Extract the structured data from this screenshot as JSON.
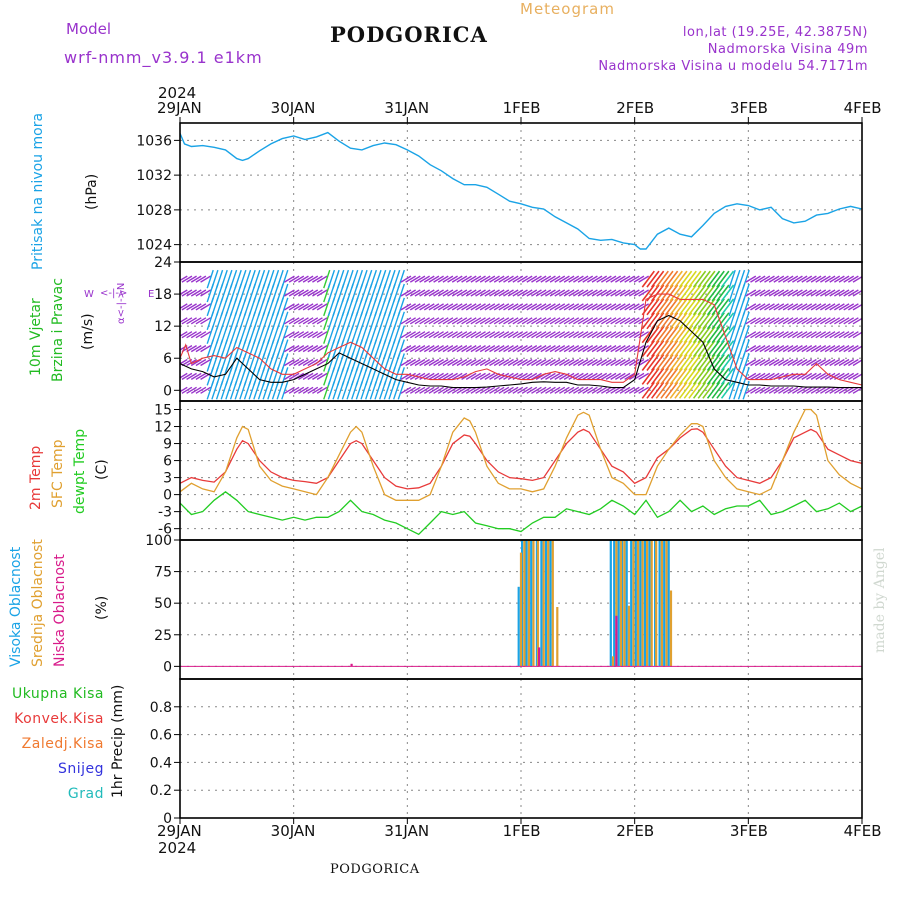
{
  "header": {
    "model_label": "Model",
    "model_name": "wrf-nmm_v3.9.1  e1km",
    "title": "PODGORICA",
    "meteogram": "Meteogram",
    "coords": "lon,lat (19.25E, 42.3875N)",
    "elevation": "Nadmorska Visina 49m",
    "model_elevation": "Nadmorska Visina u modelu 54.7171m"
  },
  "footer": {
    "station": "PODGORICA"
  },
  "watermark": "made by Angel",
  "time_axis": {
    "year_top": "2024",
    "year_bottom": "2024",
    "ticks": [
      "29JAN",
      "30JAN",
      "31JAN",
      "1FEB",
      "2FEB",
      "3FEB",
      "4FEB"
    ]
  },
  "panel_labels": {
    "pressure": {
      "name": "Pritisak na nivou mora",
      "unit": "(hPa)"
    },
    "wind": {
      "name1": "10m Vjetar",
      "name2": "Brzina i Pravac",
      "unit": "(m/s)",
      "compass_ns": "α<-|->N",
      "compass_w": "W",
      "compass_e": "E"
    },
    "temp": {
      "name1": "2m Temp",
      "name2": "SFC Temp",
      "name3": "dewpt Temp",
      "unit": "(C)"
    },
    "cloud": {
      "name1": "Visoka Oblacnost",
      "name2": "Srednja Oblacnost",
      "name3": "Niska Oblacnost",
      "unit": "(%)"
    },
    "precip": {
      "items": [
        "Ukupna Kisa",
        "Konvek.Kisa",
        "Zaledj.Kisa",
        "Snijeg",
        "Grad"
      ],
      "unit": "1hr Precip (mm)"
    }
  },
  "colors": {
    "pressure": "#1aa3e6",
    "wind_label": "#22bb22",
    "temp_2m": "#e83a3a",
    "temp_sfc": "#e0a030",
    "dewpt": "#22cc22",
    "cloud_high": "#1aa3e6",
    "cloud_mid": "#e0a030",
    "cloud_low": "#d81a8a",
    "purple": "#9933cc",
    "precip_total": "#22bb22",
    "precip_conv": "#e83a3a",
    "precip_frz": "#f07a30",
    "precip_snow": "#3333dd",
    "precip_hail": "#22bbbb"
  },
  "chart_data": [
    {
      "type": "line",
      "title": "Pritisak na nivou mora",
      "ylabel": "(hPa)",
      "ylim": [
        1022,
        1038
      ],
      "yticks": [
        1024,
        1028,
        1032,
        1036
      ],
      "x_unit": "days since 29JAN 00h",
      "x": [
        0,
        0.04,
        0.1,
        0.2,
        0.3,
        0.4,
        0.5,
        0.55,
        0.6,
        0.7,
        0.8,
        0.9,
        1.0,
        1.1,
        1.2,
        1.3,
        1.4,
        1.5,
        1.6,
        1.7,
        1.8,
        1.9,
        2.0,
        2.1,
        2.2,
        2.3,
        2.4,
        2.5,
        2.6,
        2.7,
        2.8,
        2.9,
        3.0,
        3.1,
        3.2,
        3.3,
        3.4,
        3.5,
        3.6,
        3.7,
        3.8,
        3.9,
        4.0,
        4.05,
        4.1,
        4.2,
        4.3,
        4.4,
        4.5,
        4.6,
        4.7,
        4.8,
        4.9,
        5.0,
        5.1,
        5.2,
        5.3,
        5.4,
        5.5,
        5.6,
        5.7,
        5.8,
        5.9,
        6.0
      ],
      "values": [
        1036.8,
        1035.6,
        1035.3,
        1035.4,
        1035.2,
        1034.9,
        1033.9,
        1033.7,
        1033.9,
        1034.8,
        1035.6,
        1036.2,
        1036.5,
        1036.1,
        1036.4,
        1036.9,
        1035.9,
        1035.1,
        1034.9,
        1035.4,
        1035.7,
        1035.5,
        1034.9,
        1034.2,
        1033.2,
        1032.5,
        1031.6,
        1030.9,
        1030.9,
        1030.6,
        1029.8,
        1029.0,
        1028.7,
        1028.3,
        1028.1,
        1027.2,
        1026.5,
        1025.8,
        1024.7,
        1024.5,
        1024.6,
        1024.2,
        1024.0,
        1023.5,
        1023.5,
        1025.2,
        1025.9,
        1025.2,
        1024.9,
        1026.2,
        1027.6,
        1028.4,
        1028.7,
        1028.5,
        1028.0,
        1028.3,
        1027.0,
        1026.5,
        1026.7,
        1027.4,
        1027.6,
        1028.1,
        1028.4,
        1028.1
      ]
    },
    {
      "type": "line",
      "title": "10m Vjetar Brzina i Pravac",
      "ylabel": "(m/s)",
      "ylim": [
        -2,
        24
      ],
      "yticks": [
        0,
        6,
        12,
        18,
        24
      ],
      "x_unit": "days since 29JAN 00h",
      "series": [
        {
          "name": "black",
          "x": [
            0,
            0.1,
            0.2,
            0.3,
            0.4,
            0.5,
            0.6,
            0.7,
            0.8,
            0.9,
            1.0,
            1.1,
            1.2,
            1.3,
            1.4,
            1.5,
            1.6,
            1.7,
            1.8,
            1.9,
            2.0,
            2.1,
            2.2,
            2.3,
            2.4,
            2.5,
            2.6,
            2.7,
            2.8,
            2.9,
            3.0,
            3.1,
            3.2,
            3.3,
            3.4,
            3.5,
            3.6,
            3.7,
            3.8,
            3.9,
            4.0,
            4.1,
            4.2,
            4.3,
            4.4,
            4.5,
            4.6,
            4.7,
            4.8,
            4.9,
            5.0,
            5.1,
            5.2,
            5.3,
            5.4,
            5.5,
            5.6,
            5.7,
            5.8,
            5.9,
            6.0
          ],
          "values": [
            5,
            4,
            3.5,
            2.5,
            3,
            6,
            4,
            2,
            1.5,
            1.5,
            2,
            3,
            4,
            5,
            7,
            6,
            5,
            4,
            3,
            2,
            1.5,
            1,
            0.8,
            0.8,
            0.5,
            0.5,
            0.5,
            0.6,
            0.8,
            1,
            1.2,
            1.5,
            1.6,
            1.5,
            1.5,
            1,
            1,
            0.8,
            0.5,
            0.5,
            2,
            9,
            13,
            14,
            13,
            11,
            9,
            4,
            2,
            1.5,
            1,
            1,
            0.8,
            0.8,
            0.8,
            0.6,
            0.6,
            0.6,
            0.5,
            0.5,
            0.5
          ]
        },
        {
          "name": "red",
          "x": [
            0,
            0.05,
            0.1,
            0.2,
            0.3,
            0.4,
            0.5,
            0.6,
            0.7,
            0.8,
            0.9,
            1.0,
            1.1,
            1.2,
            1.3,
            1.4,
            1.5,
            1.6,
            1.7,
            1.8,
            1.9,
            2.0,
            2.1,
            2.2,
            2.3,
            2.4,
            2.5,
            2.6,
            2.7,
            2.8,
            2.9,
            3.0,
            3.1,
            3.2,
            3.3,
            3.4,
            3.5,
            3.6,
            3.7,
            3.8,
            3.9,
            4.0,
            4.1,
            4.2,
            4.3,
            4.4,
            4.5,
            4.6,
            4.7,
            4.8,
            4.9,
            5.0,
            5.1,
            5.2,
            5.3,
            5.4,
            5.5,
            5.6,
            5.7,
            5.8,
            5.9,
            6.0
          ],
          "values": [
            6,
            8.5,
            5,
            6,
            6.5,
            6,
            8,
            7,
            6,
            4,
            3,
            3,
            4,
            5,
            7,
            8,
            9,
            8,
            6,
            4,
            3,
            3,
            2.5,
            2,
            2,
            2,
            2.5,
            3.5,
            4,
            3,
            2.5,
            2,
            2,
            3,
            3.5,
            3,
            2,
            2,
            2,
            1.5,
            1.5,
            3,
            17,
            18,
            18,
            17,
            17,
            17,
            16,
            10,
            4,
            2,
            2,
            2,
            2.5,
            3,
            3,
            5,
            3,
            2,
            1.5,
            1
          ]
        }
      ]
    },
    {
      "type": "line",
      "title": "2m Temp / SFC Temp / dewpt Temp",
      "ylabel": "(C)",
      "ylim": [
        -8,
        16.5
      ],
      "yticks": [
        -6,
        -3,
        0,
        3,
        6,
        9,
        12,
        15
      ],
      "x_unit": "days since 29JAN 00h",
      "series": [
        {
          "name": "2m Temp",
          "x": [
            0,
            0.1,
            0.2,
            0.3,
            0.4,
            0.5,
            0.55,
            0.6,
            0.7,
            0.8,
            0.9,
            1.0,
            1.1,
            1.2,
            1.3,
            1.4,
            1.5,
            1.55,
            1.6,
            1.7,
            1.8,
            1.9,
            2.0,
            2.1,
            2.2,
            2.3,
            2.4,
            2.5,
            2.55,
            2.6,
            2.7,
            2.8,
            2.9,
            3.0,
            3.1,
            3.2,
            3.3,
            3.4,
            3.5,
            3.55,
            3.6,
            3.7,
            3.8,
            3.9,
            4.0,
            4.1,
            4.2,
            4.3,
            4.4,
            4.5,
            4.55,
            4.6,
            4.7,
            4.8,
            4.9,
            5.0,
            5.1,
            5.2,
            5.3,
            5.4,
            5.5,
            5.55,
            5.6,
            5.7,
            5.8,
            5.9,
            6.0
          ],
          "values": [
            2,
            3,
            2.5,
            2.2,
            4,
            8,
            9.5,
            9,
            6,
            4,
            3,
            2.5,
            2.3,
            2,
            3,
            6,
            9,
            9.5,
            9,
            6,
            3,
            1.5,
            1,
            1.2,
            2,
            5,
            9,
            10.5,
            10.3,
            9,
            6,
            4,
            3,
            2.8,
            2.5,
            3,
            6,
            9,
            11,
            11.5,
            11,
            8,
            5,
            4,
            2,
            3,
            6.5,
            8,
            10,
            11.5,
            11.6,
            11,
            8,
            5,
            3,
            2.5,
            2,
            3,
            6,
            10,
            11,
            11.5,
            11,
            8,
            7,
            6,
            5.5
          ]
        },
        {
          "name": "SFC Temp",
          "x": [
            0,
            0.1,
            0.2,
            0.3,
            0.4,
            0.5,
            0.55,
            0.6,
            0.7,
            0.8,
            0.9,
            1.0,
            1.1,
            1.2,
            1.3,
            1.4,
            1.5,
            1.55,
            1.6,
            1.7,
            1.8,
            1.9,
            2.0,
            2.1,
            2.2,
            2.3,
            2.4,
            2.5,
            2.55,
            2.6,
            2.7,
            2.8,
            2.9,
            3.0,
            3.1,
            3.2,
            3.3,
            3.4,
            3.5,
            3.55,
            3.6,
            3.7,
            3.8,
            3.9,
            4.0,
            4.1,
            4.2,
            4.3,
            4.4,
            4.5,
            4.55,
            4.6,
            4.7,
            4.8,
            4.9,
            5.0,
            5.1,
            5.2,
            5.3,
            5.4,
            5.5,
            5.55,
            5.6,
            5.7,
            5.8,
            5.9,
            6.0
          ],
          "values": [
            0.5,
            2,
            1,
            0.5,
            4,
            10,
            12,
            11.5,
            5,
            2.5,
            1.5,
            1,
            0.5,
            0,
            3,
            7,
            11,
            12,
            11,
            5,
            0,
            -1,
            -1,
            -1,
            0,
            5,
            11,
            13.5,
            13,
            11,
            5,
            2,
            1,
            1,
            0.5,
            1,
            5,
            10,
            14,
            14.5,
            14,
            8,
            3,
            2,
            0,
            0,
            5,
            8,
            10.5,
            12.5,
            12.5,
            12,
            6,
            3,
            1,
            0.5,
            0,
            1,
            6,
            11,
            15,
            15,
            14,
            6,
            3.5,
            2,
            1
          ]
        },
        {
          "name": "dewpt Temp",
          "x": [
            0,
            0.1,
            0.2,
            0.3,
            0.4,
            0.5,
            0.6,
            0.7,
            0.8,
            0.9,
            1.0,
            1.1,
            1.2,
            1.3,
            1.4,
            1.5,
            1.6,
            1.7,
            1.8,
            1.9,
            2.0,
            2.1,
            2.2,
            2.3,
            2.4,
            2.5,
            2.6,
            2.7,
            2.8,
            2.9,
            3.0,
            3.1,
            3.2,
            3.3,
            3.4,
            3.5,
            3.6,
            3.7,
            3.8,
            3.9,
            4.0,
            4.1,
            4.2,
            4.3,
            4.4,
            4.5,
            4.6,
            4.7,
            4.8,
            4.9,
            5.0,
            5.1,
            5.2,
            5.3,
            5.4,
            5.5,
            5.6,
            5.7,
            5.8,
            5.9,
            6.0
          ],
          "values": [
            -1.5,
            -3.5,
            -3,
            -1,
            0.5,
            -1,
            -3,
            -3.5,
            -4,
            -4.5,
            -4,
            -4.5,
            -4,
            -4,
            -3,
            -1,
            -3,
            -3.5,
            -4.5,
            -5,
            -6,
            -7,
            -5,
            -3,
            -3.5,
            -3,
            -5,
            -5.5,
            -6,
            -6,
            -6.5,
            -5,
            -4,
            -4,
            -2.5,
            -3,
            -3.5,
            -2.5,
            -1,
            -2,
            -3.5,
            -1,
            -4,
            -3,
            -1,
            -3,
            -2,
            -3.5,
            -2.5,
            -2,
            -2,
            -1,
            -3.5,
            -3,
            -2,
            -1,
            -3,
            -2.5,
            -1.5,
            -3,
            -2
          ]
        }
      ]
    },
    {
      "type": "bar",
      "title": "Visoka / Srednja / Niska Oblacnost",
      "ylabel": "(%)",
      "ylim": [
        -10,
        100
      ],
      "yticks": [
        0,
        25,
        50,
        75,
        100
      ],
      "x_unit": "days since 29JAN 00h",
      "series": [
        {
          "name": "Visoka Oblacnost",
          "x": [
            2.97,
            3.0,
            3.04,
            3.08,
            3.13,
            3.17,
            3.21,
            3.25,
            3.78,
            3.81,
            3.85,
            3.88,
            3.92,
            3.96,
            4.0,
            4.04,
            4.08,
            4.12,
            4.17,
            4.21,
            4.25,
            4.29
          ],
          "values": [
            63,
            100,
            100,
            100,
            100,
            100,
            100,
            100,
            100,
            100,
            100,
            100,
            100,
            100,
            100,
            100,
            100,
            100,
            100,
            100,
            100,
            100
          ]
        },
        {
          "name": "Srednja Oblacnost",
          "x": [
            2.99,
            3.02,
            3.06,
            3.1,
            3.14,
            3.19,
            3.23,
            3.27,
            3.31,
            3.8,
            3.83,
            3.87,
            3.9,
            3.94,
            3.98,
            4.02,
            4.06,
            4.1,
            4.14,
            4.18,
            4.23,
            4.27,
            4.31
          ],
          "values": [
            90,
            100,
            100,
            100,
            100,
            100,
            100,
            100,
            47,
            8,
            100,
            100,
            100,
            48,
            100,
            100,
            100,
            100,
            100,
            100,
            100,
            100,
            60
          ]
        },
        {
          "name": "Niska Oblacnost",
          "x": [
            1.5,
            3.15,
            3.83
          ],
          "values": [
            2,
            15,
            40
          ]
        }
      ]
    },
    {
      "type": "bar",
      "title": "1hr Precip",
      "ylabel": "1hr Precip (mm)",
      "ylim": [
        0,
        1
      ],
      "yticks": [
        0,
        0.2,
        0.4,
        0.6,
        0.8
      ],
      "series": [
        {
          "name": "Ukupna Kisa",
          "values": []
        },
        {
          "name": "Konvek.Kisa",
          "values": []
        },
        {
          "name": "Zaledj.Kisa",
          "values": []
        },
        {
          "name": "Snijeg",
          "values": []
        },
        {
          "name": "Grad",
          "values": []
        }
      ]
    }
  ]
}
